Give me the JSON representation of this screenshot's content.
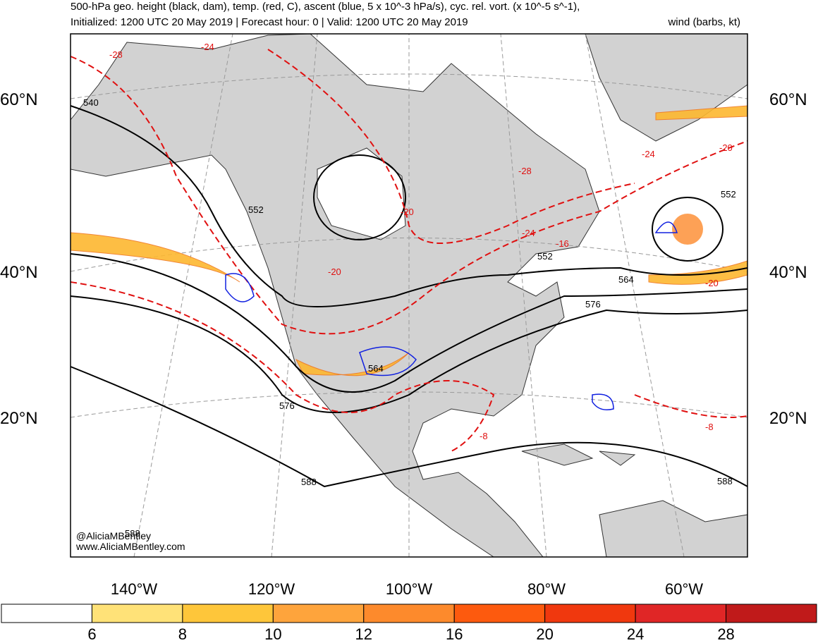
{
  "header": {
    "title": "500-hPa geo. height (black, dam), temp. (red, C), ascent (blue, 5 x 10^-3 hPa/s), cyc. rel. vort. (x 10^-5 s^-1),",
    "initialized": "Initialized: 1200 UTC 20 May 2019 | Forecast hour: 0 | Valid: 1200 UTC 20 May 2019",
    "wind": "wind (barbs, kt)"
  },
  "map": {
    "lat_labels": [
      "60°N",
      "40°N",
      "20°N"
    ],
    "lon_labels": [
      "140°W",
      "120°W",
      "100°W",
      "80°W",
      "60°W"
    ],
    "height_labels": [
      540,
      552,
      552,
      552,
      564,
      576,
      564,
      576,
      588,
      588,
      588
    ],
    "temp_labels": [
      -28,
      -24,
      -24,
      -20,
      -28,
      -20,
      -20,
      -16,
      -24,
      -20,
      -8,
      -8
    ],
    "watermark": [
      "@AliciaMBentley",
      "www.AliciaMBentley.com"
    ]
  },
  "colorbar": {
    "bounds": [
      6,
      8,
      10,
      12,
      16,
      20,
      24,
      28
    ],
    "colors": [
      "#ffffff",
      "#ffe278",
      "#fec63a",
      "#fea43c",
      "#fd8a2c",
      "#fd5a0e",
      "#f0380e",
      "#e02626",
      "#c01a1a"
    ]
  }
}
